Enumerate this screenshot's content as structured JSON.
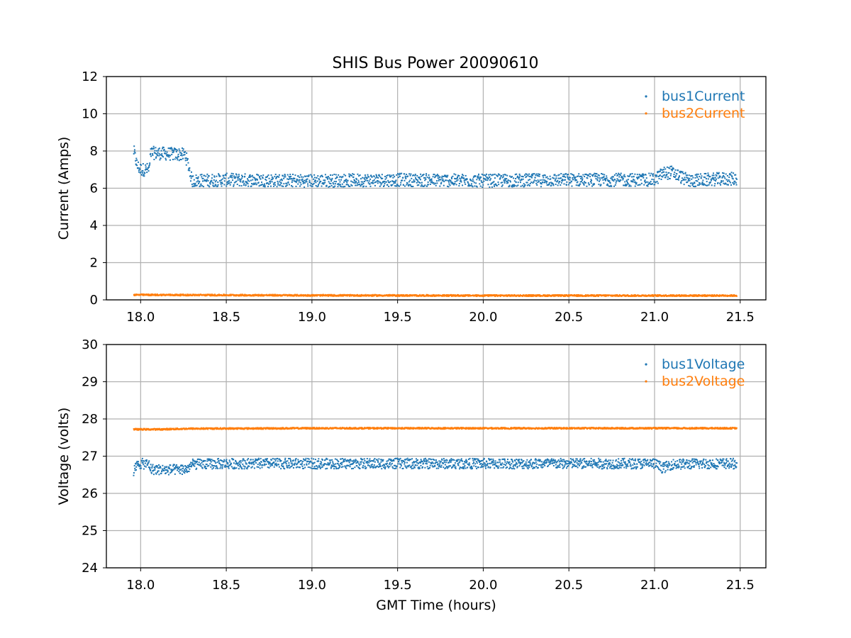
{
  "figure": {
    "title": "SHIS Bus Power 20090610"
  },
  "chart_data": [
    {
      "type": "scatter",
      "title": "SHIS Bus Power 20090610",
      "xlabel": "",
      "ylabel": "Current (Amps)",
      "xlim": [
        17.8,
        21.65
      ],
      "ylim": [
        0,
        12
      ],
      "xticks": [
        "18.0",
        "18.5",
        "19.0",
        "19.5",
        "20.0",
        "20.5",
        "21.0",
        "21.5"
      ],
      "yticks": [
        "0",
        "2",
        "4",
        "6",
        "8",
        "10",
        "12"
      ],
      "grid": true,
      "legend_position": "top-right",
      "series": [
        {
          "name": "bus1Current",
          "color": "#1f77b4",
          "x": [
            17.96,
            17.98,
            18.0,
            18.05,
            18.06,
            18.15,
            18.26,
            18.28,
            18.3,
            18.5,
            19.0,
            19.5,
            20.0,
            20.5,
            21.0,
            21.05,
            21.1,
            21.2,
            21.4,
            21.48
          ],
          "y": [
            8.0,
            7.2,
            7.0,
            7.0,
            7.9,
            7.85,
            7.8,
            7.2,
            6.4,
            6.45,
            6.4,
            6.45,
            6.4,
            6.45,
            6.45,
            6.8,
            6.85,
            6.4,
            6.5,
            6.5
          ],
          "spread": 0.35
        },
        {
          "name": "bus2Current",
          "color": "#ff7f0e",
          "x": [
            17.96,
            18.3,
            19.0,
            20.0,
            21.0,
            21.48
          ],
          "y": [
            0.27,
            0.26,
            0.24,
            0.23,
            0.23,
            0.23
          ],
          "spread": 0.04
        }
      ]
    },
    {
      "type": "scatter",
      "title": "",
      "xlabel": "GMT Time (hours)",
      "ylabel": "Voltage (volts)",
      "xlim": [
        17.8,
        21.65
      ],
      "ylim": [
        24,
        30
      ],
      "xticks": [
        "18.0",
        "18.5",
        "19.0",
        "19.5",
        "20.0",
        "20.5",
        "21.0",
        "21.5"
      ],
      "yticks": [
        "24",
        "25",
        "26",
        "27",
        "28",
        "29",
        "30"
      ],
      "grid": true,
      "legend_position": "top-right",
      "series": [
        {
          "name": "bus1Voltage",
          "color": "#1f77b4",
          "x": [
            17.96,
            17.98,
            18.0,
            18.05,
            18.06,
            18.15,
            18.27,
            18.3,
            18.5,
            19.0,
            19.5,
            20.0,
            20.5,
            21.0,
            21.05,
            21.1,
            21.3,
            21.48
          ],
          "y": [
            26.6,
            26.75,
            26.8,
            26.78,
            26.65,
            26.63,
            26.65,
            26.78,
            26.8,
            26.8,
            26.8,
            26.8,
            26.8,
            26.8,
            26.68,
            26.78,
            26.8,
            26.8
          ],
          "spread": 0.14
        },
        {
          "name": "bus2Voltage",
          "color": "#ff7f0e",
          "x": [
            17.96,
            18.1,
            18.3,
            19.0,
            20.0,
            21.0,
            21.48
          ],
          "y": [
            27.72,
            27.72,
            27.74,
            27.75,
            27.75,
            27.75,
            27.75
          ],
          "spread": 0.02
        }
      ]
    }
  ]
}
